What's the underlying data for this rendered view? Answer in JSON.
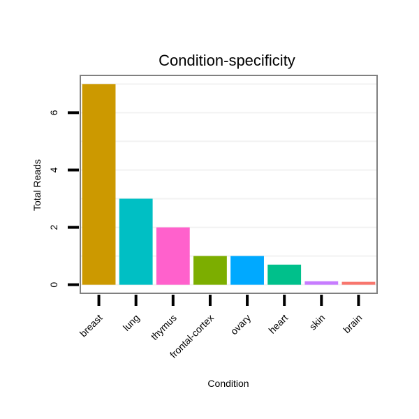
{
  "chart_data": {
    "type": "bar",
    "title": "Condition-specificity",
    "xlabel": "Condition",
    "ylabel": "Total Reads",
    "categories": [
      "breast",
      "lung",
      "thymus",
      "frontal-cortex",
      "ovary",
      "heart",
      "skin",
      "brain"
    ],
    "values": [
      7.0,
      3.0,
      2.0,
      1.0,
      1.0,
      0.7,
      0.12,
      0.1
    ],
    "colors": [
      "#CC9900",
      "#00BFC4",
      "#FF61CC",
      "#7CAE00",
      "#00A9FF",
      "#00C08B",
      "#C77CFF",
      "#F8766D"
    ],
    "ylim": [
      -0.3,
      7.3
    ],
    "yticks": [
      0,
      2,
      4,
      6
    ],
    "grid": true,
    "legend": "none"
  }
}
